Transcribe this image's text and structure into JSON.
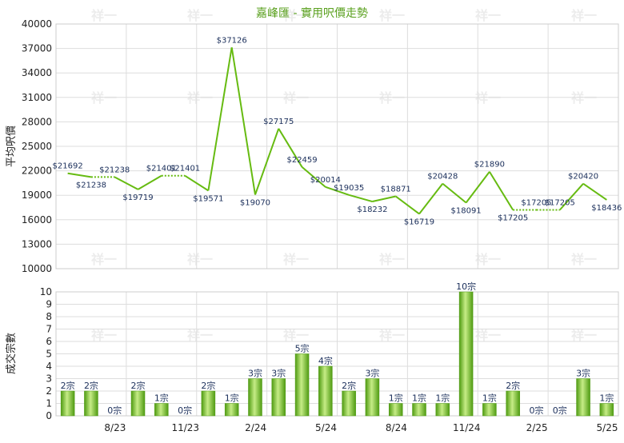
{
  "chart_data": [
    {
      "type": "line",
      "title": "嘉峰匯 - 實用呎價走勢",
      "ylabel": "平均呎價",
      "ylim": [
        10000,
        40000
      ],
      "yticks": [
        "10000",
        "13000",
        "16000",
        "19000",
        "22000",
        "25000",
        "28000",
        "31000",
        "34000",
        "37000",
        "40000"
      ],
      "series": [
        {
          "values": [
            21692,
            21238,
            21238,
            19719,
            21401,
            21401,
            19571,
            37126,
            19070,
            27175,
            22459,
            20014,
            19035,
            18232,
            18871,
            16719,
            20428,
            18091,
            21890,
            17205,
            17205,
            17205,
            20420,
            18436
          ],
          "labels": [
            "$21692",
            "$21238",
            "$21238",
            "$19719",
            "$21401",
            "$21401",
            "$19571",
            "$37126",
            "$19070",
            "$27175",
            "$22459",
            "$20014",
            "$19035",
            "$18232",
            "$18871",
            "$16719",
            "$20428",
            "$18091",
            "$21890",
            "$17205",
            "$17205",
            "$17205",
            "$20420",
            "$18436"
          ],
          "dotted_after": [
            1,
            4,
            19,
            20
          ]
        }
      ],
      "grid": true
    },
    {
      "type": "bar",
      "ylabel": "成交宗數",
      "ylim": [
        0,
        10
      ],
      "yticks": [
        "0",
        "1",
        "2",
        "3",
        "4",
        "5",
        "6",
        "7",
        "8",
        "9",
        "10"
      ],
      "xticks": [
        {
          "index": 2,
          "label": "8/23"
        },
        {
          "index": 5,
          "label": "11/23"
        },
        {
          "index": 8,
          "label": "2/24"
        },
        {
          "index": 11,
          "label": "5/24"
        },
        {
          "index": 14,
          "label": "8/24"
        },
        {
          "index": 17,
          "label": "11/24"
        },
        {
          "index": 20,
          "label": "2/25"
        },
        {
          "index": 23,
          "label": "5/25"
        }
      ],
      "values": [
        2,
        2,
        0,
        2,
        1,
        0,
        2,
        1,
        3,
        3,
        5,
        4,
        2,
        3,
        1,
        1,
        1,
        10,
        1,
        2,
        0,
        0,
        3,
        1
      ],
      "labels": [
        "2宗",
        "2宗",
        "0宗",
        "2宗",
        "1宗",
        "0宗",
        "2宗",
        "1宗",
        "3宗",
        "3宗",
        "5宗",
        "4宗",
        "2宗",
        "3宗",
        "1宗",
        "1宗",
        "1宗",
        "10宗",
        "1宗",
        "2宗",
        "0宗",
        "0宗",
        "3宗",
        "1宗"
      ],
      "grid": true
    }
  ],
  "colors": {
    "line": "#66bb11",
    "bar_light": "#c6ec86",
    "bar_dark": "#4f9b12",
    "grid": "#dddddd",
    "title": "#5aa01e"
  },
  "watermark": "祥一"
}
